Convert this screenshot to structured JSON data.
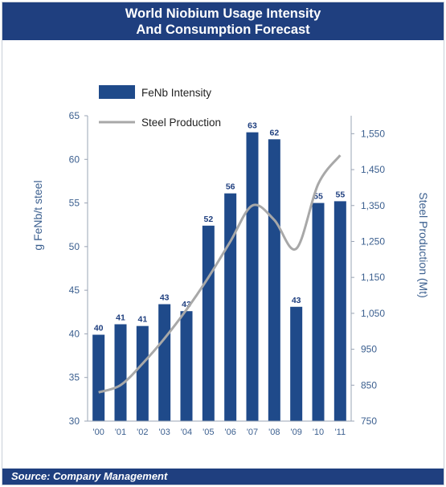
{
  "header": {
    "title_line1": "World Niobium Usage Intensity",
    "title_line2": "And Consumption Forecast"
  },
  "footer": {
    "source": "Source: Company Management"
  },
  "colors": {
    "bar": "#1f4a8a",
    "line": "#a8a8a8",
    "header_bg": "#1f3f7f",
    "text": "#3b5f8f"
  },
  "chart_data": {
    "type": "bar",
    "categories": [
      "'00",
      "'01",
      "'02",
      "'03",
      "'04",
      "'05",
      "'06",
      "'07",
      "'08",
      "'09",
      "'10",
      "'11"
    ],
    "series": [
      {
        "name": "FeNb Intensity",
        "type": "bar",
        "axis": "left",
        "values": [
          40,
          41,
          41,
          43,
          43,
          52,
          56,
          63,
          62,
          43,
          55,
          55
        ],
        "plotted": [
          39.9,
          41.1,
          40.9,
          43.4,
          42.6,
          52.4,
          56.1,
          63.1,
          62.3,
          43.1,
          55.0,
          55.2
        ]
      },
      {
        "name": "Steel Production",
        "type": "line",
        "axis": "right",
        "values": [
          830,
          850,
          910,
          980,
          1060,
          1150,
          1250,
          1350,
          1310,
          1230,
          1410,
          1490
        ]
      }
    ],
    "ylabel": "g FeNb/t steel",
    "y2label": "Steel Production  (Mt)",
    "ylim": [
      30,
      65
    ],
    "yticks": [
      "30",
      "35",
      "40",
      "45",
      "50",
      "55",
      "60",
      "65"
    ],
    "y2lim": [
      750,
      1600
    ],
    "y2ticks": [
      "750",
      "850",
      "950",
      "1,050",
      "1,150",
      "1,250",
      "1,350",
      "1,450",
      "1,550"
    ],
    "legend": "top-left",
    "grid": false
  }
}
